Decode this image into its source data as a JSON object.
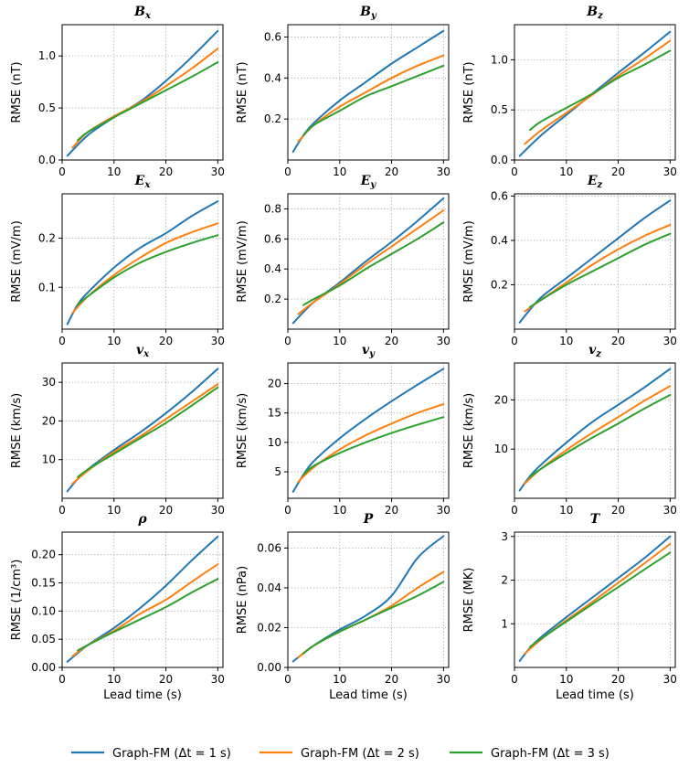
{
  "figure": {
    "xlabel": "Lead time (s)",
    "legend": [
      {
        "label": "Graph-FM (Δt = 1 s)",
        "color": "#1f77b4"
      },
      {
        "label": "Graph-FM (Δt = 2 s)",
        "color": "#ff7f0e"
      },
      {
        "label": "Graph-FM (Δt = 3 s)",
        "color": "#2ca02c"
      }
    ]
  },
  "chart_data": [
    {
      "type": "line",
      "title": "Bx",
      "ylabel": "RMSE (nT)",
      "xlim": [
        0,
        31
      ],
      "ylim": [
        0,
        1.3
      ],
      "xticks": [
        0,
        10,
        20,
        30
      ],
      "yticks": [
        "0.0",
        "0.5",
        "1.0"
      ],
      "series": [
        {
          "name": "Graph-FM (Δt=1s)",
          "x": [
            1,
            5,
            10,
            15,
            20,
            25,
            30
          ],
          "values": [
            0.04,
            0.24,
            0.41,
            0.56,
            0.76,
            0.99,
            1.24
          ]
        },
        {
          "name": "Graph-FM (Δt=2s)",
          "x": [
            2,
            5,
            10,
            15,
            20,
            25,
            30
          ],
          "values": [
            0.12,
            0.27,
            0.42,
            0.55,
            0.71,
            0.88,
            1.07
          ]
        },
        {
          "name": "Graph-FM (Δt=3s)",
          "x": [
            3,
            5,
            10,
            15,
            20,
            25,
            30
          ],
          "values": [
            0.19,
            0.27,
            0.41,
            0.54,
            0.67,
            0.8,
            0.94
          ]
        }
      ]
    },
    {
      "type": "line",
      "title": "By",
      "ylabel": "RMSE (nT)",
      "xlim": [
        0,
        31
      ],
      "ylim": [
        0,
        0.66
      ],
      "xticks": [
        0,
        10,
        20,
        30
      ],
      "yticks": [
        "0.2",
        "0.4",
        "0.6"
      ],
      "series": [
        {
          "name": "Graph-FM (Δt=1s)",
          "x": [
            1,
            3,
            5,
            10,
            15,
            20,
            25,
            30
          ],
          "values": [
            0.04,
            0.12,
            0.18,
            0.29,
            0.38,
            0.47,
            0.55,
            0.63
          ]
        },
        {
          "name": "Graph-FM (Δt=2s)",
          "x": [
            2,
            5,
            10,
            15,
            20,
            25,
            30
          ],
          "values": [
            0.09,
            0.17,
            0.26,
            0.33,
            0.4,
            0.46,
            0.51
          ]
        },
        {
          "name": "Graph-FM (Δt=3s)",
          "x": [
            3,
            5,
            10,
            15,
            20,
            25,
            30
          ],
          "values": [
            0.12,
            0.17,
            0.24,
            0.31,
            0.36,
            0.41,
            0.46
          ]
        }
      ]
    },
    {
      "type": "line",
      "title": "Bz",
      "ylabel": "RMSE (nT)",
      "xlim": [
        0,
        31
      ],
      "ylim": [
        0,
        1.35
      ],
      "xticks": [
        0,
        10,
        20,
        30
      ],
      "yticks": [
        "0.0",
        "0.5",
        "1.0"
      ],
      "series": [
        {
          "name": "Graph-FM (Δt=1s)",
          "x": [
            1,
            5,
            10,
            15,
            20,
            25,
            30
          ],
          "values": [
            0.04,
            0.24,
            0.45,
            0.66,
            0.87,
            1.07,
            1.28
          ]
        },
        {
          "name": "Graph-FM (Δt=2s)",
          "x": [
            2,
            5,
            10,
            15,
            20,
            25,
            30
          ],
          "values": [
            0.16,
            0.29,
            0.47,
            0.65,
            0.84,
            1.01,
            1.19
          ]
        },
        {
          "name": "Graph-FM (Δt=3s)",
          "x": [
            3,
            5,
            10,
            15,
            20,
            25,
            30
          ],
          "values": [
            0.3,
            0.38,
            0.52,
            0.66,
            0.82,
            0.95,
            1.09
          ]
        }
      ]
    },
    {
      "type": "line",
      "title": "Ex",
      "ylabel": "RMSE (mV/m)",
      "xlim": [
        0,
        31
      ],
      "ylim": [
        0.015,
        0.29
      ],
      "xticks": [
        0,
        10,
        20,
        30
      ],
      "yticks": [
        "0.1",
        "0.2"
      ],
      "series": [
        {
          "name": "Graph-FM (Δt=1s)",
          "x": [
            1,
            3,
            5,
            10,
            15,
            20,
            25,
            30
          ],
          "values": [
            0.025,
            0.065,
            0.09,
            0.14,
            0.18,
            0.21,
            0.245,
            0.275
          ]
        },
        {
          "name": "Graph-FM (Δt=2s)",
          "x": [
            2,
            5,
            10,
            15,
            20,
            25,
            30
          ],
          "values": [
            0.048,
            0.082,
            0.125,
            0.16,
            0.19,
            0.212,
            0.23
          ]
        },
        {
          "name": "Graph-FM (Δt=3s)",
          "x": [
            3,
            5,
            10,
            15,
            20,
            25,
            30
          ],
          "values": [
            0.065,
            0.082,
            0.12,
            0.15,
            0.172,
            0.19,
            0.206
          ]
        }
      ]
    },
    {
      "type": "line",
      "title": "Ey",
      "ylabel": "RMSE (mV/m)",
      "xlim": [
        0,
        31
      ],
      "ylim": [
        0.0,
        0.9
      ],
      "xticks": [
        0,
        10,
        20,
        30
      ],
      "yticks": [
        "0.2",
        "0.4",
        "0.6",
        "0.8"
      ],
      "series": [
        {
          "name": "Graph-FM (Δt=1s)",
          "x": [
            1,
            5,
            10,
            15,
            20,
            25,
            30
          ],
          "values": [
            0.04,
            0.18,
            0.31,
            0.45,
            0.58,
            0.72,
            0.87
          ]
        },
        {
          "name": "Graph-FM (Δt=2s)",
          "x": [
            2,
            5,
            10,
            15,
            20,
            25,
            30
          ],
          "values": [
            0.1,
            0.18,
            0.3,
            0.43,
            0.55,
            0.67,
            0.79
          ]
        },
        {
          "name": "Graph-FM (Δt=3s)",
          "x": [
            3,
            5,
            10,
            15,
            20,
            25,
            30
          ],
          "values": [
            0.16,
            0.2,
            0.29,
            0.4,
            0.5,
            0.6,
            0.71
          ]
        }
      ]
    },
    {
      "type": "line",
      "title": "Ez",
      "ylabel": "RMSE (mV/m)",
      "xlim": [
        0,
        31
      ],
      "ylim": [
        0.0,
        0.61
      ],
      "xticks": [
        0,
        10,
        20,
        30
      ],
      "yticks": [
        "0.2",
        "0.4",
        "0.6"
      ],
      "series": [
        {
          "name": "Graph-FM (Δt=1s)",
          "x": [
            1,
            5,
            10,
            15,
            20,
            25,
            30
          ],
          "values": [
            0.03,
            0.14,
            0.23,
            0.32,
            0.41,
            0.5,
            0.58
          ]
        },
        {
          "name": "Graph-FM (Δt=2s)",
          "x": [
            2,
            5,
            10,
            15,
            20,
            25,
            30
          ],
          "values": [
            0.08,
            0.13,
            0.21,
            0.29,
            0.36,
            0.42,
            0.47
          ]
        },
        {
          "name": "Graph-FM (Δt=3s)",
          "x": [
            3,
            5,
            10,
            15,
            20,
            25,
            30
          ],
          "values": [
            0.1,
            0.13,
            0.2,
            0.26,
            0.32,
            0.38,
            0.43
          ]
        }
      ]
    },
    {
      "type": "line",
      "title": "vx",
      "ylabel": "RMSE (km/s)",
      "xlim": [
        0,
        31
      ],
      "ylim": [
        0,
        35
      ],
      "xticks": [
        0,
        10,
        20,
        30
      ],
      "yticks": [
        "10",
        "20",
        "30"
      ],
      "series": [
        {
          "name": "Graph-FM (Δt=1s)",
          "x": [
            1,
            3,
            5,
            10,
            15,
            20,
            25,
            30
          ],
          "values": [
            1.8,
            5.0,
            7.5,
            12.5,
            17.0,
            22.0,
            27.5,
            33.5
          ]
        },
        {
          "name": "Graph-FM (Δt=2s)",
          "x": [
            2,
            5,
            10,
            15,
            20,
            25,
            30
          ],
          "values": [
            3.8,
            7.2,
            12.0,
            16.0,
            20.5,
            25.0,
            29.5
          ]
        },
        {
          "name": "Graph-FM (Δt=3s)",
          "x": [
            3,
            5,
            10,
            15,
            20,
            25,
            30
          ],
          "values": [
            5.5,
            7.5,
            11.5,
            15.5,
            19.5,
            24.0,
            28.7
          ]
        }
      ]
    },
    {
      "type": "line",
      "title": "vy",
      "ylabel": "RMSE (km/s)",
      "xlim": [
        0,
        31
      ],
      "ylim": [
        0.5,
        23.5
      ],
      "xticks": [
        0,
        10,
        20,
        30
      ],
      "yticks": [
        "5",
        "10",
        "15",
        "20"
      ],
      "series": [
        {
          "name": "Graph-FM (Δt=1s)",
          "x": [
            1,
            3,
            5,
            10,
            15,
            20,
            25,
            30
          ],
          "values": [
            1.6,
            4.5,
            6.8,
            10.7,
            14.0,
            17.0,
            19.8,
            22.5
          ]
        },
        {
          "name": "Graph-FM (Δt=2s)",
          "x": [
            2,
            5,
            10,
            15,
            20,
            25,
            30
          ],
          "values": [
            3.3,
            5.8,
            8.8,
            11.2,
            13.2,
            15.0,
            16.5
          ]
        },
        {
          "name": "Graph-FM (Δt=3s)",
          "x": [
            3,
            5,
            10,
            15,
            20,
            25,
            30
          ],
          "values": [
            4.5,
            6.0,
            8.2,
            10.0,
            11.6,
            13.0,
            14.3
          ]
        }
      ]
    },
    {
      "type": "line",
      "title": "vz",
      "ylabel": "RMSE (km/s)",
      "xlim": [
        0,
        31
      ],
      "ylim": [
        0,
        27.5
      ],
      "xticks": [
        0,
        10,
        20,
        30
      ],
      "yticks": [
        "10",
        "20"
      ],
      "series": [
        {
          "name": "Graph-FM (Δt=1s)",
          "x": [
            1,
            3,
            5,
            10,
            15,
            20,
            25,
            30
          ],
          "values": [
            1.6,
            4.5,
            6.7,
            11.3,
            15.5,
            19.0,
            22.5,
            26.3
          ]
        },
        {
          "name": "Graph-FM (Δt=2s)",
          "x": [
            2,
            5,
            10,
            15,
            20,
            25,
            30
          ],
          "values": [
            3.0,
            5.9,
            9.8,
            13.3,
            16.5,
            19.8,
            22.8
          ]
        },
        {
          "name": "Graph-FM (Δt=3s)",
          "x": [
            3,
            5,
            10,
            15,
            20,
            25,
            30
          ],
          "values": [
            4.3,
            5.9,
            9.2,
            12.3,
            15.2,
            18.2,
            21.0
          ]
        }
      ]
    },
    {
      "type": "line",
      "title": "ρ",
      "ylabel": "RMSE (1/cm³)",
      "xlim": [
        0,
        31
      ],
      "ylim": [
        0,
        0.24
      ],
      "xticks": [
        0,
        10,
        20,
        30
      ],
      "yticks": [
        "0.00",
        "0.05",
        "0.10",
        "0.15",
        "0.20"
      ],
      "series": [
        {
          "name": "Graph-FM (Δt=1s)",
          "x": [
            1,
            5,
            10,
            15,
            20,
            25,
            30
          ],
          "values": [
            0.01,
            0.04,
            0.07,
            0.105,
            0.145,
            0.19,
            0.232
          ]
        },
        {
          "name": "Graph-FM (Δt=2s)",
          "x": [
            2,
            5,
            10,
            15,
            20,
            25,
            30
          ],
          "values": [
            0.02,
            0.04,
            0.065,
            0.095,
            0.12,
            0.152,
            0.183
          ]
        },
        {
          "name": "Graph-FM (Δt=3s)",
          "x": [
            3,
            5,
            10,
            15,
            20,
            25,
            30
          ],
          "values": [
            0.03,
            0.04,
            0.063,
            0.085,
            0.107,
            0.133,
            0.157
          ]
        }
      ]
    },
    {
      "type": "line",
      "title": "P",
      "ylabel": "RMSE (nPa)",
      "xlim": [
        0,
        31
      ],
      "ylim": [
        0,
        0.068
      ],
      "xticks": [
        0,
        10,
        20,
        30
      ],
      "yticks": [
        "0.00",
        "0.02",
        "0.04",
        "0.06"
      ],
      "series": [
        {
          "name": "Graph-FM (Δt=1s)",
          "x": [
            1,
            5,
            10,
            15,
            20,
            25,
            30
          ],
          "values": [
            0.003,
            0.011,
            0.019,
            0.026,
            0.036,
            0.055,
            0.066
          ]
        },
        {
          "name": "Graph-FM (Δt=2s)",
          "x": [
            2,
            5,
            10,
            15,
            20,
            25,
            30
          ],
          "values": [
            0.005,
            0.011,
            0.018,
            0.024,
            0.031,
            0.04,
            0.048
          ]
        },
        {
          "name": "Graph-FM (Δt=3s)",
          "x": [
            3,
            5,
            10,
            15,
            20,
            25,
            30
          ],
          "values": [
            0.007,
            0.011,
            0.018,
            0.024,
            0.03,
            0.036,
            0.043
          ]
        }
      ]
    },
    {
      "type": "line",
      "title": "T",
      "ylabel": "RMSE (MK)",
      "xlim": [
        0,
        31
      ],
      "ylim": [
        0,
        3.1
      ],
      "xticks": [
        0,
        10,
        20,
        30
      ],
      "yticks": [
        "1",
        "2",
        "3"
      ],
      "series": [
        {
          "name": "Graph-FM (Δt=1s)",
          "x": [
            1,
            3,
            5,
            10,
            15,
            20,
            25,
            30
          ],
          "values": [
            0.15,
            0.45,
            0.68,
            1.15,
            1.6,
            2.05,
            2.5,
            3.0
          ]
        },
        {
          "name": "Graph-FM (Δt=2s)",
          "x": [
            2,
            5,
            10,
            15,
            20,
            25,
            30
          ],
          "values": [
            0.32,
            0.63,
            1.08,
            1.5,
            1.94,
            2.38,
            2.83
          ]
        },
        {
          "name": "Graph-FM (Δt=3s)",
          "x": [
            3,
            5,
            10,
            15,
            20,
            25,
            30
          ],
          "values": [
            0.47,
            0.65,
            1.05,
            1.45,
            1.84,
            2.24,
            2.63
          ]
        }
      ]
    }
  ],
  "titles": [
    {
      "base": "B",
      "sub": "x",
      "style": "serif-bold-italic"
    },
    {
      "base": "B",
      "sub": "y",
      "style": "serif-bold-italic"
    },
    {
      "base": "B",
      "sub": "z",
      "style": "serif-bold-italic"
    },
    {
      "base": "E",
      "sub": "x",
      "style": "serif-bold-italic"
    },
    {
      "base": "E",
      "sub": "y",
      "style": "serif-bold-italic"
    },
    {
      "base": "E",
      "sub": "z",
      "style": "serif-bold-italic"
    },
    {
      "base": "v",
      "sub": "x",
      "style": "serif-bold-italic"
    },
    {
      "base": "v",
      "sub": "y",
      "style": "serif-bold-italic"
    },
    {
      "base": "v",
      "sub": "z",
      "style": "serif-bold-italic"
    },
    {
      "base": "ρ",
      "sub": "",
      "style": "serif-bold-italic"
    },
    {
      "base": "P",
      "sub": "",
      "style": "serif-bold-italic"
    },
    {
      "base": "T",
      "sub": "",
      "style": "serif-bold-italic"
    }
  ],
  "colors": [
    "#1f77b4",
    "#ff7f0e",
    "#2ca02c"
  ]
}
